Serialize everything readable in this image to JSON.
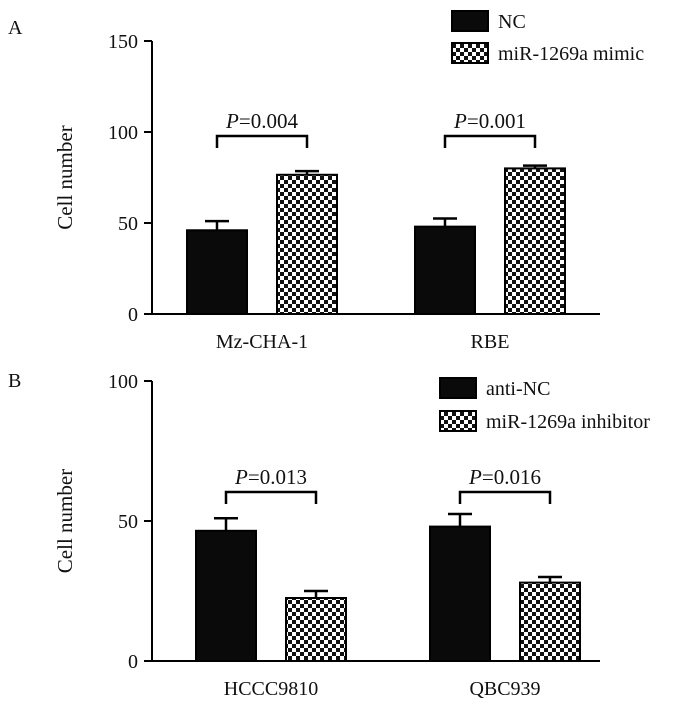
{
  "chart_data": [
    {
      "panel": "A",
      "type": "bar",
      "ylabel": "Cell number",
      "ylim": [
        0,
        150
      ],
      "yticks": [
        0,
        50,
        100,
        150
      ],
      "categories": [
        "Mz-CHA-1",
        "RBE"
      ],
      "series": [
        {
          "name": "NC",
          "values": [
            46,
            48
          ],
          "errors": [
            5,
            4.5
          ],
          "fill": "solid"
        },
        {
          "name": "miR-1269a mimic",
          "values": [
            76.5,
            80
          ],
          "errors": [
            2,
            1.5
          ],
          "fill": "checker"
        }
      ],
      "annotations": [
        {
          "category": "Mz-CHA-1",
          "label_italic": "P",
          "label_rest": "=0.004"
        },
        {
          "category": "RBE",
          "label_italic": "P",
          "label_rest": "=0.001"
        }
      ],
      "legend": "top-right"
    },
    {
      "panel": "B",
      "type": "bar",
      "ylabel": "Cell number",
      "ylim": [
        0,
        100
      ],
      "yticks": [
        0,
        50,
        100
      ],
      "categories": [
        "HCCC9810",
        "QBC939"
      ],
      "series": [
        {
          "name": "anti-NC",
          "values": [
            46.5,
            48
          ],
          "errors": [
            4.5,
            4.5
          ],
          "fill": "solid"
        },
        {
          "name": "miR-1269a inhibitor",
          "values": [
            22.5,
            28
          ],
          "errors": [
            2.5,
            2
          ],
          "fill": "checker"
        }
      ],
      "annotations": [
        {
          "category": "HCCC9810",
          "label_italic": "P",
          "label_rest": "=0.013"
        },
        {
          "category": "QBC939",
          "label_italic": "P",
          "label_rest": "=0.016"
        }
      ],
      "legend": "top-right"
    }
  ],
  "colors": {
    "bar": "#0a0a0a",
    "checker_dark": "#111111",
    "checker_light": "#ffffff"
  }
}
